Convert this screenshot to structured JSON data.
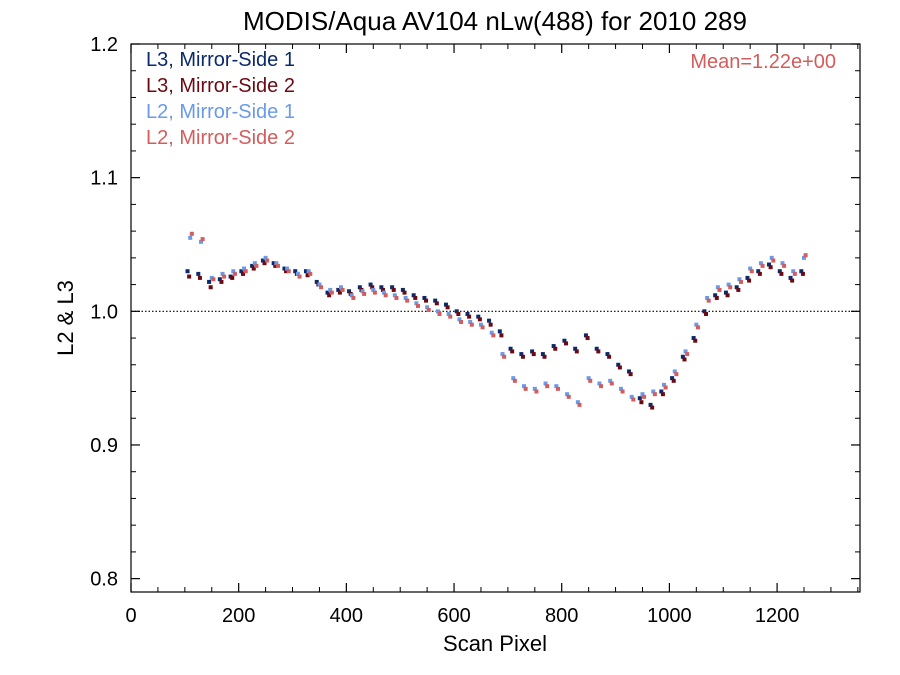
{
  "chart_data": {
    "type": "scatter",
    "title": "MODIS/Aqua AV104 nLw(488) for 2010 289",
    "xlabel": "Scan Pixel",
    "ylabel": "L2 & L3",
    "xlim": [
      0,
      1354
    ],
    "ylim": [
      0.79,
      1.2
    ],
    "x_ticks": [
      "0",
      "200",
      "400",
      "600",
      "800",
      "1000",
      "1200"
    ],
    "y_ticks": [
      "0.8",
      "0.9",
      "1.0",
      "1.1",
      "1.2"
    ],
    "reference_line": 1.0,
    "annotation": "Mean=1.22e+00",
    "annotation_color": "#D35C5C",
    "grid": false,
    "legend_position": "top-left",
    "series": [
      {
        "name": "L3, Mirror-Side 1",
        "color": "#0A2A6B",
        "x": [
          105,
          125,
          145,
          165,
          185,
          205,
          225,
          245,
          265,
          285,
          305,
          325,
          345,
          365,
          385,
          405,
          425,
          445,
          465,
          485,
          505,
          525,
          545,
          565,
          585,
          605,
          625,
          645,
          665,
          685,
          705,
          725,
          745,
          765,
          785,
          805,
          825,
          845,
          865,
          885,
          905,
          925,
          945,
          965,
          985,
          1005,
          1025,
          1045,
          1065,
          1085,
          1105,
          1125,
          1145,
          1165,
          1185,
          1205,
          1225,
          1245
        ],
        "y": [
          1.03,
          1.028,
          1.022,
          1.024,
          1.026,
          1.03,
          1.034,
          1.038,
          1.036,
          1.032,
          1.03,
          1.03,
          1.022,
          1.014,
          1.016,
          1.015,
          1.018,
          1.02,
          1.018,
          1.018,
          1.016,
          1.012,
          1.01,
          1.008,
          1.005,
          1.0,
          0.998,
          0.996,
          0.993,
          0.985,
          0.972,
          0.968,
          0.97,
          0.968,
          0.974,
          0.978,
          0.972,
          0.982,
          0.972,
          0.968,
          0.96,
          0.955,
          0.935,
          0.93,
          0.94,
          0.95,
          0.966,
          0.98,
          1.0,
          1.012,
          1.014,
          1.018,
          1.025,
          1.03,
          1.035,
          1.03,
          1.025,
          1.03
        ]
      },
      {
        "name": "L3, Mirror-Side 2",
        "color": "#6B0A12",
        "x": [
          108,
          128,
          148,
          168,
          188,
          208,
          228,
          248,
          268,
          288,
          308,
          328,
          348,
          368,
          388,
          408,
          428,
          448,
          468,
          488,
          508,
          528,
          548,
          568,
          588,
          608,
          628,
          648,
          668,
          688,
          708,
          728,
          748,
          768,
          788,
          808,
          828,
          848,
          868,
          888,
          908,
          928,
          948,
          968,
          988,
          1008,
          1028,
          1048,
          1068,
          1088,
          1108,
          1128,
          1148,
          1168,
          1188,
          1208,
          1228,
          1248
        ],
        "y": [
          1.026,
          1.025,
          1.018,
          1.022,
          1.025,
          1.028,
          1.032,
          1.036,
          1.034,
          1.03,
          1.028,
          1.027,
          1.02,
          1.012,
          1.014,
          1.013,
          1.016,
          1.018,
          1.016,
          1.016,
          1.014,
          1.01,
          1.008,
          1.006,
          1.003,
          0.998,
          0.996,
          0.994,
          0.99,
          0.982,
          0.97,
          0.966,
          0.968,
          0.966,
          0.972,
          0.976,
          0.97,
          0.98,
          0.97,
          0.966,
          0.958,
          0.953,
          0.932,
          0.928,
          0.938,
          0.948,
          0.964,
          0.978,
          0.998,
          1.01,
          1.012,
          1.016,
          1.023,
          1.028,
          1.033,
          1.028,
          1.023,
          1.028
        ]
      },
      {
        "name": "L2, Mirror-Side 1",
        "color": "#6A9AE8",
        "x": [
          110,
          130,
          150,
          170,
          190,
          210,
          230,
          250,
          270,
          290,
          310,
          330,
          350,
          370,
          390,
          410,
          430,
          450,
          470,
          490,
          510,
          530,
          550,
          570,
          590,
          610,
          630,
          650,
          670,
          690,
          710,
          730,
          750,
          770,
          790,
          810,
          830,
          850,
          870,
          890,
          910,
          930,
          950,
          970,
          990,
          1010,
          1030,
          1050,
          1070,
          1090,
          1110,
          1130,
          1150,
          1170,
          1190,
          1210,
          1230,
          1250
        ],
        "y": [
          1.055,
          1.052,
          1.025,
          1.028,
          1.03,
          1.032,
          1.036,
          1.04,
          1.036,
          1.032,
          1.028,
          1.03,
          1.02,
          1.016,
          1.018,
          1.012,
          1.015,
          1.016,
          1.014,
          1.012,
          1.01,
          1.006,
          1.003,
          1.0,
          0.998,
          0.994,
          0.992,
          0.99,
          0.984,
          0.968,
          0.95,
          0.944,
          0.942,
          0.946,
          0.944,
          0.938,
          0.932,
          0.95,
          0.946,
          0.948,
          0.942,
          0.936,
          0.938,
          0.94,
          0.945,
          0.955,
          0.97,
          0.99,
          1.01,
          1.018,
          1.02,
          1.024,
          1.032,
          1.036,
          1.04,
          1.036,
          1.03,
          1.04
        ]
      },
      {
        "name": "L2, Mirror-Side 2",
        "color": "#D35C5C",
        "x": [
          113,
          133,
          153,
          173,
          193,
          213,
          233,
          253,
          273,
          293,
          313,
          333,
          353,
          373,
          393,
          413,
          433,
          453,
          473,
          493,
          513,
          533,
          553,
          573,
          593,
          613,
          633,
          653,
          673,
          693,
          713,
          733,
          753,
          773,
          793,
          813,
          833,
          853,
          873,
          893,
          913,
          933,
          953,
          973,
          993,
          1013,
          1033,
          1053,
          1073,
          1093,
          1113,
          1133,
          1153,
          1173,
          1193,
          1213,
          1233,
          1253
        ],
        "y": [
          1.058,
          1.054,
          1.024,
          1.026,
          1.028,
          1.03,
          1.034,
          1.038,
          1.034,
          1.03,
          1.026,
          1.028,
          1.018,
          1.014,
          1.016,
          1.01,
          1.013,
          1.014,
          1.012,
          1.01,
          1.008,
          1.004,
          1.001,
          0.998,
          0.996,
          0.992,
          0.99,
          0.988,
          0.982,
          0.966,
          0.948,
          0.942,
          0.94,
          0.944,
          0.942,
          0.936,
          0.93,
          0.948,
          0.944,
          0.946,
          0.94,
          0.934,
          0.936,
          0.938,
          0.943,
          0.953,
          0.968,
          0.988,
          1.008,
          1.016,
          1.018,
          1.022,
          1.03,
          1.034,
          1.038,
          1.034,
          1.028,
          1.042
        ]
      }
    ]
  }
}
